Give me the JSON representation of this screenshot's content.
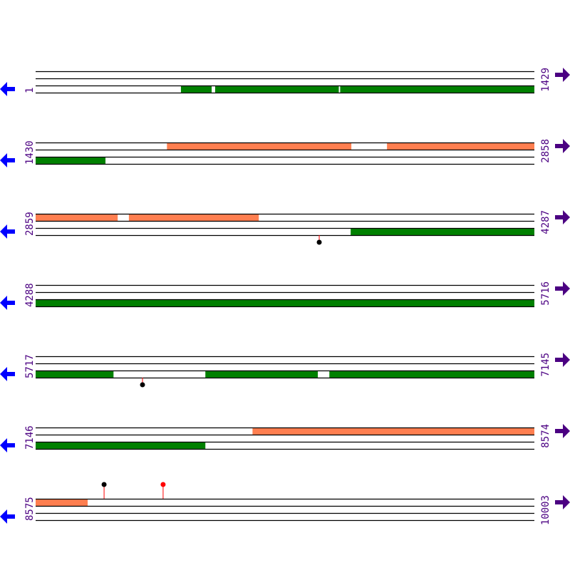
{
  "colors": {
    "line": "#000000",
    "orf_forward": "#ff7f50",
    "orf_reverse": "#008000",
    "label": "#4b0082",
    "arrow_left": "#0000ff",
    "arrow_right": "#4b0082",
    "marker_black": "#000000",
    "marker_red": "#ff0000",
    "stem": "#ff0000"
  },
  "icons": {
    "left": "arrow-left-icon",
    "right": "arrow-right-icon"
  },
  "rows": [
    {
      "start": "1",
      "end": "1429",
      "s": 1,
      "e": 1429,
      "forward": [],
      "reverse": [
        [
          417,
          505
        ],
        [
          515,
          869
        ],
        [
          873,
          1429
        ]
      ],
      "markers": []
    },
    {
      "start": "1430",
      "end": "2858",
      "s": 1430,
      "e": 2858,
      "forward": [
        [
          1806,
          2334
        ],
        [
          2436,
          2858
        ]
      ],
      "reverse": [
        [
          1430,
          1630
        ]
      ],
      "markers": []
    },
    {
      "start": "2859",
      "end": "4287",
      "s": 2859,
      "e": 4287,
      "forward": [
        [
          2859,
          3094
        ],
        [
          3126,
          3498
        ]
      ],
      "reverse": [
        [
          3761,
          4287
        ]
      ],
      "markers": [
        {
          "pos": 3671,
          "dir": "down",
          "color": "black"
        }
      ]
    },
    {
      "start": "4288",
      "end": "5716",
      "s": 4288,
      "e": 5716,
      "forward": [],
      "reverse": [
        [
          4288,
          5716
        ]
      ],
      "markers": []
    },
    {
      "start": "5717",
      "end": "7145",
      "s": 5717,
      "e": 7145,
      "forward": [],
      "reverse": [
        [
          5717,
          5940
        ],
        [
          6203,
          6525
        ],
        [
          6558,
          7145
        ]
      ],
      "markers": [
        {
          "pos": 6023,
          "dir": "down",
          "color": "black"
        }
      ]
    },
    {
      "start": "7146",
      "end": "8574",
      "s": 7146,
      "e": 8574,
      "forward": [
        [
          7767,
          8574
        ]
      ],
      "reverse": [
        [
          7146,
          7632
        ]
      ],
      "markers": []
    },
    {
      "start": "8575",
      "end": "10003",
      "s": 8575,
      "e": 10003,
      "forward": [
        [
          8575,
          8724
        ]
      ],
      "reverse": [],
      "markers": [
        {
          "pos": 8771,
          "dir": "up",
          "color": "black"
        },
        {
          "pos": 8940,
          "dir": "up",
          "color": "red"
        }
      ]
    }
  ]
}
